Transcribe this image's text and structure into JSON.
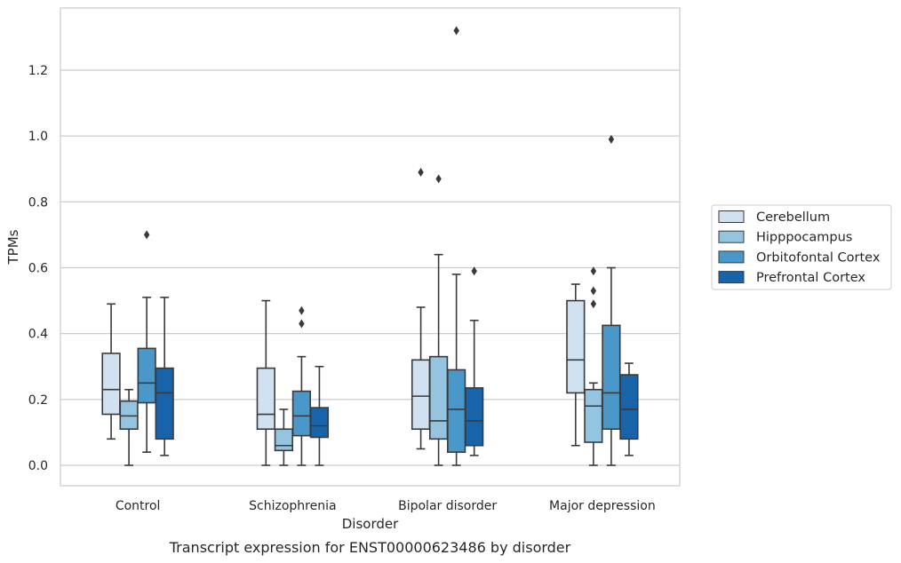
{
  "chart_data": {
    "type": "box",
    "caption": "Transcript expression for ENST00000623486 by disorder",
    "xlabel": "Disorder",
    "ylabel": "TPMs",
    "ylim": [
      -0.065,
      1.38
    ],
    "yticks": [
      0.0,
      0.2,
      0.4,
      0.6,
      0.8,
      1.0,
      1.2
    ],
    "yticklabels": [
      "0.0",
      "0.2",
      "0.4",
      "0.6",
      "0.8",
      "1.0",
      "1.2"
    ],
    "grid": "horizontal",
    "legend_position": "right",
    "categories": [
      "Control",
      "Schizophrenia",
      "Bipolar disorder",
      "Major depression"
    ],
    "series": [
      {
        "name": "Cerebellum",
        "color": "#d0e1f2",
        "boxes": [
          {
            "whislo": 0.08,
            "q1": 0.155,
            "med": 0.23,
            "q3": 0.34,
            "whishi": 0.49,
            "fliers": []
          },
          {
            "whislo": 0.0,
            "q1": 0.11,
            "med": 0.155,
            "q3": 0.295,
            "whishi": 0.5,
            "fliers": []
          },
          {
            "whislo": 0.05,
            "q1": 0.11,
            "med": 0.21,
            "q3": 0.32,
            "whishi": 0.48,
            "fliers": [
              0.89
            ]
          },
          {
            "whislo": 0.06,
            "q1": 0.22,
            "med": 0.32,
            "q3": 0.5,
            "whishi": 0.55,
            "fliers": []
          }
        ]
      },
      {
        "name": "Hipppocampus",
        "color": "#94c4df",
        "boxes": [
          {
            "whislo": 0.0,
            "q1": 0.11,
            "med": 0.15,
            "q3": 0.195,
            "whishi": 0.23,
            "fliers": []
          },
          {
            "whislo": 0.0,
            "q1": 0.045,
            "med": 0.06,
            "q3": 0.11,
            "whishi": 0.17,
            "fliers": []
          },
          {
            "whislo": 0.0,
            "q1": 0.08,
            "med": 0.135,
            "q3": 0.33,
            "whishi": 0.64,
            "fliers": [
              0.87
            ]
          },
          {
            "whislo": 0.0,
            "q1": 0.07,
            "med": 0.18,
            "q3": 0.23,
            "whishi": 0.25,
            "fliers": [
              0.49,
              0.53,
              0.59
            ]
          }
        ]
      },
      {
        "name": "Orbitofontal Cortex",
        "color": "#4a98c9",
        "boxes": [
          {
            "whislo": 0.04,
            "q1": 0.19,
            "med": 0.25,
            "q3": 0.355,
            "whishi": 0.51,
            "fliers": [
              0.7
            ]
          },
          {
            "whislo": 0.0,
            "q1": 0.09,
            "med": 0.15,
            "q3": 0.225,
            "whishi": 0.33,
            "fliers": [
              0.43,
              0.47
            ]
          },
          {
            "whislo": 0.0,
            "q1": 0.04,
            "med": 0.17,
            "q3": 0.29,
            "whishi": 0.58,
            "fliers": [
              1.32
            ]
          },
          {
            "whislo": 0.0,
            "q1": 0.11,
            "med": 0.22,
            "q3": 0.425,
            "whishi": 0.6,
            "fliers": [
              0.99
            ]
          }
        ]
      },
      {
        "name": "Prefrontal Cortex",
        "color": "#1764ab",
        "boxes": [
          {
            "whislo": 0.03,
            "q1": 0.08,
            "med": 0.22,
            "q3": 0.295,
            "whishi": 0.51,
            "fliers": []
          },
          {
            "whislo": 0.0,
            "q1": 0.085,
            "med": 0.12,
            "q3": 0.175,
            "whishi": 0.3,
            "fliers": []
          },
          {
            "whislo": 0.03,
            "q1": 0.06,
            "med": 0.135,
            "q3": 0.235,
            "whishi": 0.44,
            "fliers": [
              0.59
            ]
          },
          {
            "whislo": 0.03,
            "q1": 0.08,
            "med": 0.17,
            "q3": 0.275,
            "whishi": 0.31,
            "fliers": []
          }
        ]
      }
    ]
  }
}
